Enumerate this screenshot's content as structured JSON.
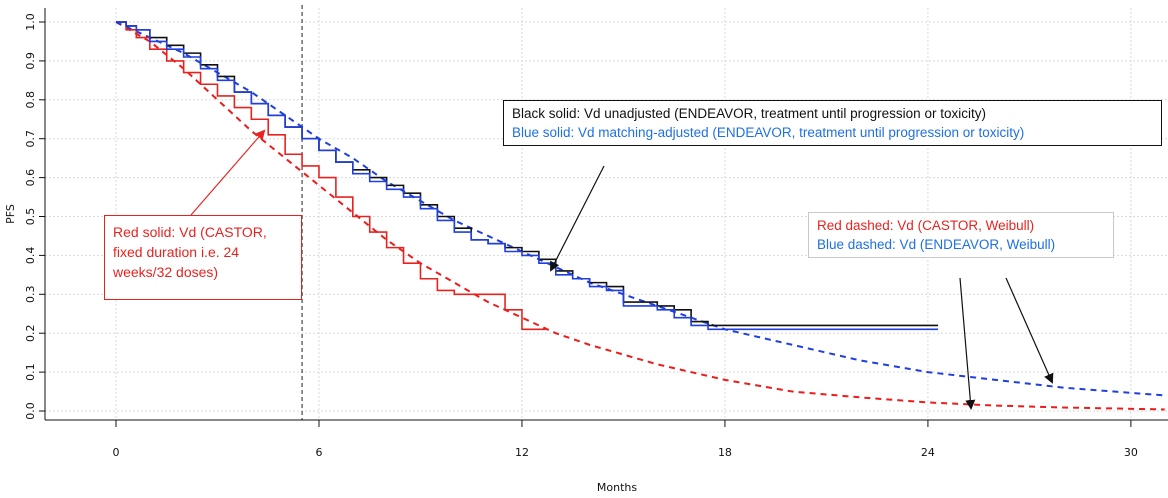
{
  "chart_data": {
    "type": "line",
    "xlabel": "Months",
    "ylabel": "PFS",
    "xlim": [
      -2,
      31
    ],
    "ylim": [
      0,
      1
    ],
    "x_ticks": [
      0,
      6,
      12,
      18,
      24,
      30
    ],
    "y_ticks": [
      0.0,
      0.1,
      0.2,
      0.3,
      0.4,
      0.5,
      0.6,
      0.7,
      0.8,
      0.9,
      1.0
    ],
    "y_tick_labels": [
      "0.0",
      "0.1",
      "0.2",
      "0.3",
      "0.4",
      "0.5",
      "0.6",
      "0.7",
      "0.8",
      "0.9",
      "1.0"
    ],
    "grid": true,
    "reference_line_x": 5.5,
    "series": [
      {
        "name": "Black solid: Vd unadjusted (ENDEAVOR, treatment until progression or toxicity)",
        "color": "#111111",
        "style": "step",
        "x": [
          0,
          0.3,
          0.6,
          1.0,
          1.5,
          2.0,
          2.5,
          3.0,
          3.5,
          4.0,
          4.5,
          5.0,
          5.5,
          6.0,
          6.5,
          7.0,
          7.5,
          8.0,
          8.5,
          9.0,
          9.5,
          10.0,
          10.5,
          11.0,
          11.5,
          12.0,
          12.5,
          13.0,
          13.5,
          14.0,
          14.5,
          15.0,
          15.5,
          16.0,
          16.5,
          17.0,
          17.5,
          18.0,
          24.3
        ],
        "y": [
          1.0,
          0.99,
          0.98,
          0.96,
          0.94,
          0.92,
          0.89,
          0.86,
          0.82,
          0.79,
          0.76,
          0.73,
          0.7,
          0.67,
          0.64,
          0.62,
          0.6,
          0.58,
          0.56,
          0.53,
          0.5,
          0.47,
          0.44,
          0.43,
          0.42,
          0.41,
          0.39,
          0.36,
          0.34,
          0.33,
          0.32,
          0.28,
          0.28,
          0.27,
          0.26,
          0.23,
          0.22,
          0.22,
          0.22
        ]
      },
      {
        "name": "Blue solid: Vd matching-adjusted (ENDEAVOR, treatment until progression or toxicity)",
        "color": "#1f3fe0",
        "style": "step",
        "x": [
          0,
          0.3,
          0.6,
          1.0,
          1.5,
          2.0,
          2.5,
          3.0,
          3.5,
          4.0,
          4.5,
          5.0,
          5.5,
          6.0,
          6.5,
          7.0,
          7.5,
          8.0,
          8.5,
          9.0,
          9.5,
          10.0,
          10.5,
          11.0,
          11.5,
          12.0,
          12.5,
          13.0,
          13.5,
          14.0,
          14.5,
          15.0,
          15.5,
          16.0,
          16.5,
          17.0,
          17.5,
          18.0,
          24.3
        ],
        "y": [
          1.0,
          0.99,
          0.98,
          0.95,
          0.93,
          0.91,
          0.88,
          0.85,
          0.82,
          0.79,
          0.76,
          0.73,
          0.7,
          0.67,
          0.64,
          0.61,
          0.59,
          0.57,
          0.55,
          0.52,
          0.49,
          0.46,
          0.44,
          0.43,
          0.41,
          0.4,
          0.38,
          0.35,
          0.34,
          0.32,
          0.31,
          0.27,
          0.27,
          0.26,
          0.24,
          0.22,
          0.21,
          0.21,
          0.21
        ]
      },
      {
        "name": "Red solid: Vd (CASTOR, fixed duration i.e. 24 weeks/32 doses)",
        "color": "#e8231f",
        "style": "step",
        "x": [
          0,
          0.3,
          0.6,
          1.0,
          1.5,
          2.0,
          2.5,
          3.0,
          3.5,
          4.0,
          4.5,
          5.0,
          5.5,
          6.0,
          6.5,
          7.0,
          7.5,
          8.0,
          8.5,
          9.0,
          9.5,
          10.0,
          10.5,
          11.0,
          11.5,
          12.0,
          12.5,
          12.7
        ],
        "y": [
          1.0,
          0.98,
          0.96,
          0.93,
          0.9,
          0.87,
          0.84,
          0.81,
          0.78,
          0.75,
          0.71,
          0.66,
          0.63,
          0.6,
          0.55,
          0.5,
          0.46,
          0.42,
          0.38,
          0.34,
          0.31,
          0.3,
          0.3,
          0.3,
          0.26,
          0.21,
          0.21,
          0.21
        ]
      },
      {
        "name": "Red dashed: Vd (CASTOR, Weibull)",
        "color": "#ee1b1b",
        "style": "dashed",
        "x": [
          0,
          1,
          2,
          3,
          4,
          5,
          6,
          7,
          8,
          9,
          10,
          11,
          12,
          13,
          14,
          16,
          18,
          20,
          22,
          24,
          26,
          28,
          31
        ],
        "y": [
          1.0,
          0.95,
          0.88,
          0.8,
          0.72,
          0.65,
          0.58,
          0.51,
          0.44,
          0.38,
          0.33,
          0.28,
          0.24,
          0.2,
          0.17,
          0.12,
          0.08,
          0.05,
          0.035,
          0.022,
          0.014,
          0.009,
          0.004
        ]
      },
      {
        "name": "Blue dashed: Vd (ENDEAVOR, Weibull)",
        "color": "#1f3fe0",
        "style": "dashed",
        "x": [
          0,
          1,
          2,
          3,
          4,
          5,
          6,
          7,
          8,
          9,
          10,
          11,
          12,
          13,
          14,
          16,
          18,
          20,
          22,
          24,
          26,
          28,
          31
        ],
        "y": [
          1.0,
          0.96,
          0.92,
          0.87,
          0.82,
          0.76,
          0.7,
          0.65,
          0.59,
          0.54,
          0.49,
          0.45,
          0.41,
          0.37,
          0.33,
          0.27,
          0.21,
          0.17,
          0.13,
          0.1,
          0.08,
          0.06,
          0.04
        ]
      }
    ],
    "annotations": {
      "endeavor": {
        "line1": "Black solid: Vd unadjusted (ENDEAVOR, treatment until progression or toxicity)",
        "line2": "Blue solid: Vd matching-adjusted (ENDEAVOR, treatment until progression or toxicity)"
      },
      "castor": {
        "text": "Red solid: Vd (CASTOR, fixed duration i.e. 24 weeks/32 doses)"
      },
      "weibull": {
        "line1": "Red dashed: Vd (CASTOR, Weibull)",
        "line2": "Blue dashed: Vd (ENDEAVOR, Weibull)"
      }
    }
  },
  "colors": {
    "black": "#111111",
    "blue_text": "#1f6fe5",
    "blue_line": "#1f3fe0",
    "red": "#e8231f",
    "grid": "#d9d9d9"
  }
}
